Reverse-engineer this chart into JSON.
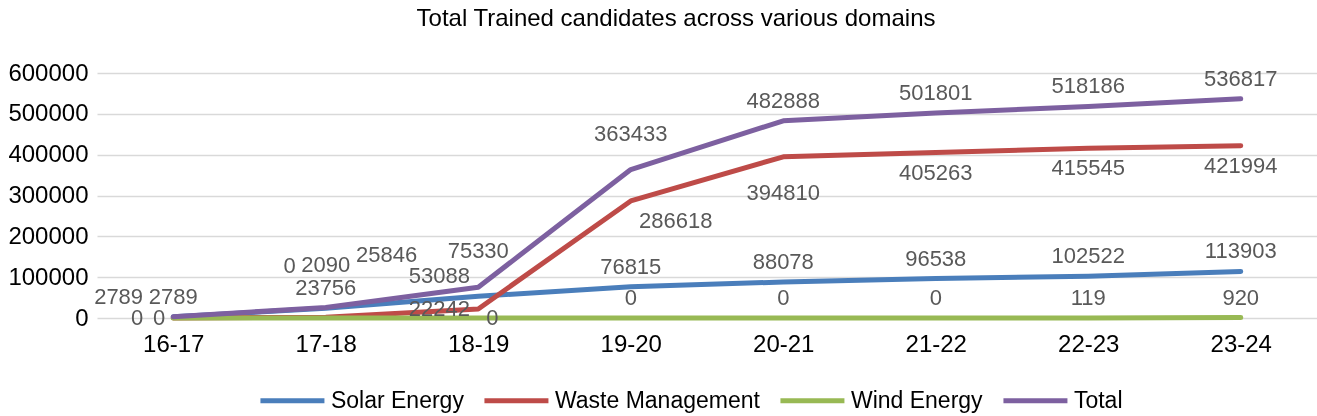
{
  "chart_data": {
    "type": "line",
    "title": "Total Trained candidates across various domains",
    "categories": [
      "16-17",
      "17-18",
      "18-19",
      "19-20",
      "20-21",
      "21-22",
      "22-23",
      "23-24"
    ],
    "series": [
      {
        "name": "Solar Energy",
        "color": "#4a7ebb",
        "values": [
          2789,
          23756,
          53088,
          76815,
          88078,
          96538,
          102522,
          113903
        ]
      },
      {
        "name": "Waste Management",
        "color": "#be4b48",
        "values": [
          0,
          2090,
          22242,
          286618,
          394810,
          405263,
          415545,
          421994
        ]
      },
      {
        "name": "Wind Energy",
        "color": "#98b954",
        "values": [
          0,
          0,
          0,
          0,
          0,
          0,
          119,
          920
        ]
      },
      {
        "name": "Total",
        "color": "#7d60a0",
        "values": [
          2789,
          25846,
          75330,
          363433,
          482888,
          501801,
          518186,
          536817
        ]
      }
    ],
    "ylim": [
      0,
      600000
    ],
    "yticks": [
      0,
      100000,
      200000,
      300000,
      400000,
      500000,
      600000
    ],
    "grid": "y",
    "legend": "bottom",
    "data_labels": true,
    "line_style": "solid"
  }
}
